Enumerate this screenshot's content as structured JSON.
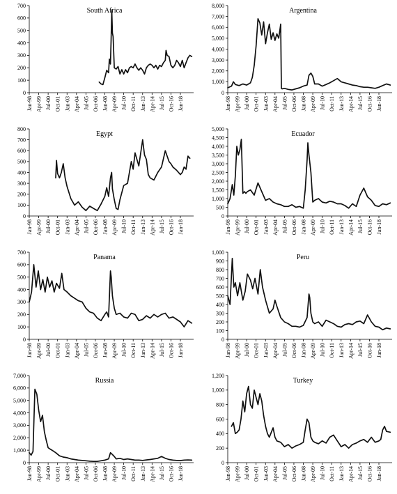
{
  "chart_data": [
    {
      "type": "line",
      "title": "South Africa",
      "ylim": [
        0,
        700
      ],
      "yticks": [
        "0",
        "100",
        "200",
        "300",
        "400",
        "500",
        "600",
        "700"
      ],
      "xticks": [
        "Jan-98",
        "Apr-99",
        "Jul-00",
        "Oct-01",
        "Jan-03",
        "Apr-04",
        "Jul-05",
        "Oct-06",
        "Jan-08",
        "Apr-09",
        "Jul-10",
        "Oct-11",
        "Jan-13",
        "Apr-14",
        "Jul-15",
        "Oct-16",
        "Jan-18"
      ],
      "x": [
        2007.25,
        2007.5,
        2007.75,
        2008.0,
        2008.25,
        2008.5,
        2008.6,
        2008.75,
        2008.83,
        2008.92,
        2009.0,
        2009.1,
        2009.25,
        2009.5,
        2009.75,
        2010.0,
        2010.25,
        2010.5,
        2010.75,
        2011.0,
        2011.25,
        2011.5,
        2011.75,
        2012.0,
        2012.25,
        2012.5,
        2012.75,
        2013.0,
        2013.25,
        2013.5,
        2013.75,
        2014.0,
        2014.25,
        2014.5,
        2014.75,
        2015.0,
        2015.25,
        2015.5,
        2015.75,
        2016.0,
        2016.1,
        2016.25,
        2016.5,
        2016.75,
        2017.0,
        2017.25,
        2017.5,
        2017.75,
        2018.0,
        2018.25,
        2018.5,
        2018.75,
        2019.0,
        2019.25,
        2019.5
      ],
      "y": [
        85,
        70,
        65,
        120,
        180,
        160,
        270,
        230,
        420,
        660,
        480,
        450,
        200,
        190,
        210,
        150,
        185,
        150,
        185,
        160,
        200,
        210,
        200,
        230,
        200,
        180,
        200,
        180,
        150,
        200,
        220,
        230,
        220,
        200,
        220,
        190,
        220,
        210,
        240,
        260,
        340,
        300,
        290,
        220,
        200,
        220,
        260,
        240,
        210,
        260,
        200,
        240,
        280,
        300,
        290
      ]
    },
    {
      "type": "line",
      "title": "Argentina",
      "ylim": [
        0,
        8000
      ],
      "yticks": [
        "0",
        "1,000",
        "2,000",
        "3,000",
        "4,000",
        "5,000",
        "6,000",
        "7,000",
        "8,000"
      ],
      "xticks": [
        "Jan-98",
        "Apr-99",
        "Jul-00",
        "Oct-01",
        "Jan-03",
        "Apr-04",
        "Jul-05",
        "Oct-06",
        "Jan-08",
        "Apr-09",
        "Jul-10",
        "Oct-11",
        "Jan-13",
        "Apr-14",
        "Jul-15",
        "Oct-16",
        "Jan-18"
      ],
      "x": [
        1998.0,
        1998.5,
        1998.75,
        1999.0,
        1999.5,
        2000.0,
        2000.5,
        2001.0,
        2001.25,
        2001.5,
        2001.75,
        2002.0,
        2002.25,
        2002.5,
        2002.75,
        2003.0,
        2003.25,
        2003.5,
        2003.75,
        2004.0,
        2004.25,
        2004.5,
        2004.75,
        2005.0,
        2005.1,
        2005.2,
        2005.5,
        2006.0,
        2006.5,
        2007.0,
        2007.5,
        2008.0,
        2008.5,
        2008.75,
        2009.0,
        2009.25,
        2009.5,
        2010.0,
        2010.5,
        2011.0,
        2011.5,
        2012.0,
        2012.5,
        2013.0,
        2013.5,
        2014.0,
        2014.5,
        2015.0,
        2015.5,
        2016.0,
        2016.5,
        2017.0,
        2017.5,
        2018.0,
        2018.5,
        2019.0,
        2019.5
      ],
      "y": [
        450,
        600,
        1000,
        750,
        650,
        800,
        700,
        900,
        1400,
        2500,
        4300,
        6800,
        6400,
        5300,
        6500,
        4500,
        5500,
        6300,
        4900,
        5500,
        4800,
        5400,
        5000,
        6300,
        400,
        350,
        400,
        300,
        250,
        350,
        450,
        600,
        700,
        1600,
        1800,
        1500,
        800,
        800,
        600,
        750,
        900,
        1100,
        1300,
        1000,
        900,
        800,
        700,
        650,
        550,
        500,
        500,
        450,
        400,
        500,
        650,
        800,
        700
      ]
    },
    {
      "type": "line",
      "title": "Egypt",
      "ylim": [
        0,
        800
      ],
      "yticks": [
        "0",
        "100",
        "200",
        "300",
        "400",
        "500",
        "600",
        "700",
        "800"
      ],
      "xticks": [
        "Jan-98",
        "Apr-99",
        "Jul-00",
        "Oct-01",
        "Jan-03",
        "Apr-04",
        "Jul-05",
        "Oct-06",
        "Jan-08",
        "Apr-09",
        "Jul-10",
        "Oct-11",
        "Jan-13",
        "Apr-14",
        "Jul-15",
        "Oct-16",
        "Jan-18"
      ],
      "x": [
        2001.5,
        2001.6,
        2001.75,
        2002.0,
        2002.25,
        2002.5,
        2002.75,
        2003.0,
        2003.5,
        2004.0,
        2004.5,
        2005.0,
        2005.5,
        2006.0,
        2006.5,
        2007.0,
        2007.5,
        2008.0,
        2008.25,
        2008.5,
        2008.75,
        2008.9,
        2009.0,
        2009.25,
        2009.5,
        2009.75,
        2010.0,
        2010.5,
        2011.0,
        2011.5,
        2011.75,
        2012.0,
        2012.25,
        2012.5,
        2013.0,
        2013.25,
        2013.5,
        2013.75,
        2014.0,
        2014.5,
        2015.0,
        2015.5,
        2016.0,
        2016.25,
        2016.5,
        2016.75,
        2017.0,
        2017.5,
        2018.0,
        2018.25,
        2018.5,
        2018.75,
        2019.0,
        2019.25
      ],
      "y": [
        350,
        510,
        390,
        350,
        400,
        480,
        350,
        270,
        160,
        100,
        130,
        80,
        50,
        90,
        70,
        50,
        110,
        180,
        260,
        180,
        350,
        400,
        250,
        150,
        70,
        60,
        150,
        280,
        300,
        500,
        430,
        580,
        520,
        460,
        700,
        560,
        520,
        380,
        350,
        330,
        400,
        450,
        600,
        550,
        500,
        480,
        450,
        420,
        380,
        400,
        450,
        430,
        550,
        530
      ]
    },
    {
      "type": "line",
      "title": "Ecuador",
      "ylim": [
        0,
        5000
      ],
      "yticks": [
        "0",
        "500",
        "1,000",
        "1,500",
        "2,000",
        "2,500",
        "3,000",
        "3,500",
        "4,000",
        "4,500",
        "5,000"
      ],
      "xticks": [
        "Jan-98",
        "Apr-99",
        "Jul-00",
        "Oct-01",
        "Jan-03",
        "Apr-04",
        "Jul-05",
        "Oct-06",
        "Jan-08",
        "Apr-09",
        "Jul-10",
        "Oct-11",
        "Jan-13",
        "Apr-14",
        "Jul-15",
        "Oct-16",
        "Jan-18"
      ],
      "x": [
        1998.0,
        1998.3,
        1998.6,
        1998.8,
        1999.0,
        1999.2,
        1999.4,
        1999.6,
        1999.8,
        2000.0,
        2000.2,
        2000.4,
        2000.6,
        2001.0,
        2001.5,
        2002.0,
        2002.5,
        2003.0,
        2003.5,
        2004.0,
        2004.5,
        2005.0,
        2005.5,
        2006.0,
        2006.5,
        2007.0,
        2007.5,
        2008.0,
        2008.25,
        2008.5,
        2008.6,
        2008.75,
        2009.0,
        2009.25,
        2009.5,
        2010.0,
        2010.5,
        2011.0,
        2011.5,
        2012.0,
        2012.5,
        2013.0,
        2013.5,
        2014.0,
        2014.5,
        2015.0,
        2015.5,
        2016.0,
        2016.5,
        2017.0,
        2017.5,
        2018.0,
        2018.5,
        2019.0,
        2019.5
      ],
      "y": [
        700,
        1000,
        1800,
        1200,
        2300,
        4000,
        3500,
        3800,
        4400,
        1300,
        1400,
        1300,
        1400,
        1500,
        1200,
        1900,
        1400,
        900,
        1000,
        800,
        700,
        650,
        550,
        550,
        650,
        500,
        550,
        450,
        1500,
        3200,
        4200,
        3500,
        2500,
        800,
        900,
        1000,
        800,
        750,
        850,
        800,
        700,
        700,
        600,
        450,
        700,
        550,
        1200,
        1600,
        1100,
        900,
        600,
        550,
        700,
        650,
        750
      ]
    },
    {
      "type": "line",
      "title": "Panama",
      "ylim": [
        0,
        700
      ],
      "yticks": [
        "0",
        "100",
        "200",
        "300",
        "400",
        "500",
        "600",
        "700"
      ],
      "xticks": [
        "Jan-98",
        "Apr-99",
        "Jul-00",
        "Oct-01",
        "Jan-03",
        "Apr-04",
        "Jul-05",
        "Oct-06",
        "Jan-08",
        "Apr-09",
        "Jul-10",
        "Oct-11",
        "Jan-13",
        "Apr-14",
        "Jul-15",
        "Oct-16",
        "Jan-18"
      ],
      "x": [
        1998.0,
        1998.3,
        1998.6,
        1998.9,
        1999.2,
        1999.5,
        1999.8,
        2000.1,
        2000.4,
        2000.7,
        2001.0,
        2001.3,
        2001.6,
        2002.0,
        2002.3,
        2002.6,
        2003.0,
        2003.5,
        2004.0,
        2004.5,
        2005.0,
        2005.5,
        2006.0,
        2006.5,
        2007.0,
        2007.5,
        2008.0,
        2008.25,
        2008.5,
        2008.75,
        2008.85,
        2009.0,
        2009.25,
        2009.5,
        2010.0,
        2010.5,
        2011.0,
        2011.5,
        2012.0,
        2012.5,
        2013.0,
        2013.5,
        2014.0,
        2014.5,
        2015.0,
        2015.5,
        2016.0,
        2016.5,
        2017.0,
        2017.5,
        2018.0,
        2018.5,
        2019.0,
        2019.5
      ],
      "y": [
        300,
        380,
        600,
        420,
        550,
        400,
        480,
        380,
        500,
        420,
        470,
        380,
        450,
        410,
        530,
        400,
        380,
        350,
        330,
        310,
        300,
        250,
        220,
        210,
        170,
        150,
        200,
        220,
        180,
        550,
        500,
        350,
        250,
        200,
        210,
        180,
        170,
        210,
        200,
        150,
        160,
        190,
        170,
        200,
        180,
        200,
        210,
        170,
        180,
        160,
        140,
        100,
        150,
        130
      ]
    },
    {
      "type": "line",
      "title": "Peru",
      "ylim": [
        0,
        1000
      ],
      "yticks": [
        "0",
        "100",
        "200",
        "300",
        "400",
        "500",
        "600",
        "700",
        "800",
        "900",
        "1,000"
      ],
      "xticks": [
        "Jan-98",
        "Apr-99",
        "Jul-00",
        "Oct-01",
        "Jan-03",
        "Apr-04",
        "Jul-05",
        "Oct-06",
        "Jan-08",
        "Apr-09",
        "Jul-10",
        "Oct-11",
        "Jan-13",
        "Apr-14",
        "Jul-15",
        "Oct-16",
        "Jan-18"
      ],
      "x": [
        1998.0,
        1998.3,
        1998.6,
        1998.8,
        1999.0,
        1999.3,
        1999.6,
        2000.0,
        2000.3,
        2000.6,
        2001.0,
        2001.3,
        2001.6,
        2002.0,
        2002.3,
        2002.6,
        2003.0,
        2003.5,
        2004.0,
        2004.25,
        2004.5,
        2005.0,
        2005.5,
        2006.0,
        2006.5,
        2007.0,
        2007.5,
        2008.0,
        2008.5,
        2008.75,
        2008.85,
        2009.0,
        2009.25,
        2009.5,
        2010.0,
        2010.5,
        2011.0,
        2011.5,
        2012.0,
        2012.5,
        2013.0,
        2013.5,
        2014.0,
        2014.5,
        2015.0,
        2015.5,
        2016.0,
        2016.5,
        2017.0,
        2017.5,
        2018.0,
        2018.5,
        2019.0,
        2019.5
      ],
      "y": [
        500,
        400,
        930,
        600,
        650,
        500,
        650,
        450,
        550,
        750,
        680,
        580,
        700,
        520,
        800,
        600,
        450,
        300,
        350,
        450,
        380,
        250,
        200,
        180,
        150,
        150,
        140,
        160,
        250,
        520,
        480,
        300,
        200,
        180,
        200,
        150,
        220,
        200,
        180,
        150,
        140,
        170,
        180,
        170,
        200,
        210,
        180,
        280,
        200,
        150,
        140,
        110,
        130,
        120
      ]
    },
    {
      "type": "line",
      "title": "Russia",
      "ylim": [
        0,
        7000
      ],
      "yticks": [
        "0",
        "1,000",
        "2,000",
        "3,000",
        "4,000",
        "5,000",
        "6,000",
        "7,000"
      ],
      "xticks": [
        "Jan-98",
        "Apr-99",
        "Jul-00",
        "Oct-01",
        "Jan-03",
        "Apr-04",
        "Jul-05",
        "Oct-06",
        "Jan-08",
        "Apr-09",
        "Jul-10",
        "Oct-11",
        "Jan-13",
        "Apr-14",
        "Jul-15",
        "Oct-16",
        "Jan-18"
      ],
      "x": [
        1998.0,
        1998.25,
        1998.5,
        1998.6,
        1998.75,
        1999.0,
        1999.25,
        1999.5,
        1999.75,
        2000.0,
        2000.25,
        2000.5,
        2000.75,
        2001.0,
        2001.5,
        2002.0,
        2002.5,
        2003.0,
        2003.5,
        2004.0,
        2004.5,
        2005.0,
        2005.5,
        2006.0,
        2006.5,
        2007.0,
        2007.5,
        2008.0,
        2008.5,
        2008.75,
        2009.0,
        2009.25,
        2009.5,
        2010.0,
        2010.5,
        2011.0,
        2011.5,
        2012.0,
        2012.5,
        2013.0,
        2013.5,
        2014.0,
        2014.5,
        2015.0,
        2015.5,
        2016.0,
        2016.5,
        2017.0,
        2017.5,
        2018.0,
        2018.5,
        2019.0,
        2019.5
      ],
      "y": [
        800,
        600,
        900,
        3000,
        5900,
        5500,
        4200,
        3300,
        3800,
        2500,
        1800,
        1200,
        1100,
        1000,
        800,
        550,
        450,
        400,
        300,
        250,
        200,
        180,
        150,
        120,
        100,
        100,
        150,
        200,
        300,
        800,
        650,
        500,
        300,
        350,
        250,
        300,
        250,
        200,
        200,
        180,
        220,
        250,
        300,
        350,
        500,
        350,
        250,
        200,
        180,
        170,
        200,
        220,
        200
      ]
    },
    {
      "type": "line",
      "title": "Turkey",
      "ylim": [
        0,
        1200
      ],
      "yticks": [
        "0",
        "200",
        "400",
        "600",
        "800",
        "1,000",
        "1,200"
      ],
      "xticks": [
        "Jan-98",
        "Apr-99",
        "Jul-00",
        "Oct-01",
        "Jan-03",
        "Apr-04",
        "Jul-05",
        "Oct-06",
        "Jan-08",
        "Apr-09",
        "Jul-10",
        "Oct-11",
        "Jan-13",
        "Apr-14",
        "Jul-15",
        "Oct-16",
        "Jan-18"
      ],
      "x": [
        1998.5,
        1998.75,
        1999.0,
        1999.25,
        1999.5,
        1999.75,
        2000.0,
        2000.25,
        2000.5,
        2000.75,
        2001.0,
        2001.25,
        2001.5,
        2001.75,
        2002.0,
        2002.25,
        2002.5,
        2002.75,
        2003.0,
        2003.25,
        2003.5,
        2004.0,
        2004.25,
        2004.5,
        2005.0,
        2005.5,
        2006.0,
        2006.5,
        2007.0,
        2007.5,
        2008.0,
        2008.25,
        2008.5,
        2008.75,
        2009.0,
        2009.25,
        2009.5,
        2010.0,
        2010.5,
        2011.0,
        2011.5,
        2012.0,
        2012.5,
        2013.0,
        2013.5,
        2014.0,
        2014.5,
        2015.0,
        2015.5,
        2016.0,
        2016.5,
        2017.0,
        2017.5,
        2018.0,
        2018.25,
        2018.5,
        2018.75,
        2019.0,
        2019.5
      ],
      "y": [
        500,
        550,
        400,
        420,
        450,
        600,
        850,
        700,
        950,
        1050,
        800,
        750,
        1000,
        900,
        800,
        950,
        850,
        650,
        500,
        400,
        350,
        480,
        350,
        300,
        280,
        220,
        250,
        200,
        230,
        250,
        280,
        450,
        600,
        550,
        350,
        300,
        280,
        260,
        300,
        270,
        350,
        380,
        300,
        220,
        250,
        200,
        250,
        270,
        300,
        320,
        280,
        350,
        280,
        300,
        320,
        450,
        500,
        430,
        420
      ]
    }
  ]
}
